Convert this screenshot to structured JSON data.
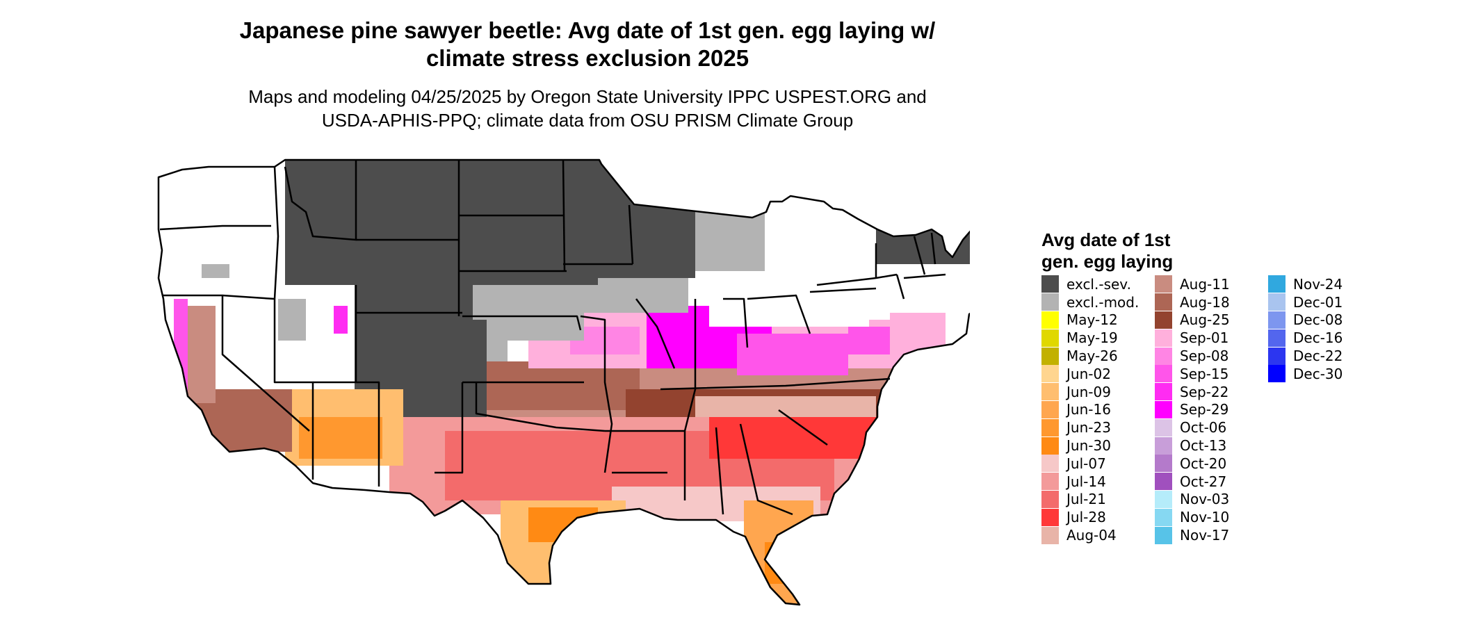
{
  "title": "Japanese pine sawyer beetle: Avg date of 1st gen. egg laying w/\nclimate stress exclusion 2025",
  "subtitle": "Maps and modeling 04/25/2025 by Oregon State University IPPC USPEST.ORG and\nUSDA-APHIS-PPQ; climate data from OSU PRISM Climate Group",
  "legend": {
    "title": "Avg date of 1st\ngen. egg laying",
    "columns": [
      [
        {
          "label": "excl.-sev.",
          "color": "#4d4d4d"
        },
        {
          "label": "excl.-mod.",
          "color": "#b3b3b3"
        },
        {
          "label": "May-12",
          "color": "#ffff00"
        },
        {
          "label": "May-19",
          "color": "#e0d800"
        },
        {
          "label": "May-26",
          "color": "#c2b100"
        },
        {
          "label": "Jun-02",
          "color": "#ffd58f"
        },
        {
          "label": "Jun-09",
          "color": "#ffbe6f"
        },
        {
          "label": "Jun-16",
          "color": "#ffa64f"
        },
        {
          "label": "Jun-23",
          "color": "#ff982f"
        },
        {
          "label": "Jun-30",
          "color": "#ff8a14"
        },
        {
          "label": "Jul-07",
          "color": "#f6c8c8"
        },
        {
          "label": "Jul-14",
          "color": "#f39a9a"
        },
        {
          "label": "Jul-21",
          "color": "#f36b6b"
        },
        {
          "label": "Jul-28",
          "color": "#ff3838"
        },
        {
          "label": "Aug-04",
          "color": "#e8b4a8"
        }
      ],
      [
        {
          "label": "Aug-11",
          "color": "#c98c80"
        },
        {
          "label": "Aug-18",
          "color": "#ad6655"
        },
        {
          "label": "Aug-25",
          "color": "#93432f"
        },
        {
          "label": "Sep-01",
          "color": "#ffb0dc"
        },
        {
          "label": "Sep-08",
          "color": "#ff85e4"
        },
        {
          "label": "Sep-15",
          "color": "#ff55ea"
        },
        {
          "label": "Sep-22",
          "color": "#ff2cf2"
        },
        {
          "label": "Sep-29",
          "color": "#ff00ff"
        },
        {
          "label": "Oct-06",
          "color": "#dcc3e6"
        },
        {
          "label": "Oct-13",
          "color": "#c89ed9"
        },
        {
          "label": "Oct-20",
          "color": "#b47acb"
        },
        {
          "label": "Oct-27",
          "color": "#a050be"
        },
        {
          "label": "Nov-03",
          "color": "#b5ecfa"
        },
        {
          "label": "Nov-10",
          "color": "#86d8f2"
        },
        {
          "label": "Nov-17",
          "color": "#57c3e8"
        }
      ],
      [
        {
          "label": "Nov-24",
          "color": "#30a8df"
        },
        {
          "label": "Dec-01",
          "color": "#a9c4ef"
        },
        {
          "label": "Dec-08",
          "color": "#7d96ef"
        },
        {
          "label": "Dec-16",
          "color": "#5366ee"
        },
        {
          "label": "Dec-22",
          "color": "#2c36f0"
        },
        {
          "label": "Dec-30",
          "color": "#0000ff"
        }
      ]
    ]
  }
}
